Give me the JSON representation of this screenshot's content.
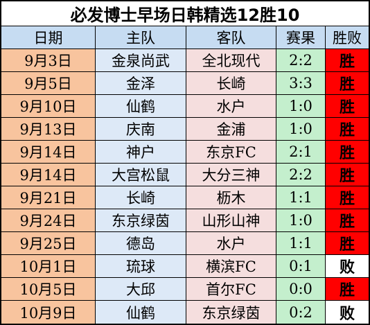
{
  "title": "必发博士早场日韩精选12胜10",
  "headers": [
    "日期",
    "主队",
    "客队",
    "赛果",
    "胜败"
  ],
  "colors": {
    "date_bg": "#f8c49e",
    "home_bg": "#dde9f7",
    "away_bg": "#f5dede",
    "score_bg": "#c4efcd",
    "header_bg": "#c6dcf2",
    "win_bg": "#ff0000",
    "loss_bg": "#ffffff"
  },
  "rows": [
    {
      "date": "9月3日",
      "home": "金泉尚武",
      "away": "全北现代",
      "score": "2:2",
      "result": "胜"
    },
    {
      "date": "9月5日",
      "home": "金泽",
      "away": "长崎",
      "score": "3:3",
      "result": "胜"
    },
    {
      "date": "9月10日",
      "home": "仙鹤",
      "away": "水户",
      "score": "1:0",
      "result": "胜"
    },
    {
      "date": "9月13日",
      "home": "庆南",
      "away": "金浦",
      "score": "1:0",
      "result": "胜"
    },
    {
      "date": "9月14日",
      "home": "神户",
      "away": "东京FC",
      "score": "2:1",
      "result": "胜"
    },
    {
      "date": "9月14日",
      "home": "大宫松鼠",
      "away": "大分三神",
      "score": "2:2",
      "result": "胜"
    },
    {
      "date": "9月21日",
      "home": "长崎",
      "away": "枥木",
      "score": "1:1",
      "result": "胜"
    },
    {
      "date": "9月24日",
      "home": "东京绿茵",
      "away": "山形山神",
      "score": "1:0",
      "result": "胜"
    },
    {
      "date": "9月25日",
      "home": "德岛",
      "away": "水户",
      "score": "1:1",
      "result": "胜"
    },
    {
      "date": "10月1日",
      "home": "琉球",
      "away": "横滨FC",
      "score": "0:1",
      "result": "败"
    },
    {
      "date": "10月5日",
      "home": "大邱",
      "away": "首尔FC",
      "score": "0:0",
      "result": "胜"
    },
    {
      "date": "10月9日",
      "home": "仙鹤",
      "away": "东京绿茵",
      "score": "0:2",
      "result": "败"
    }
  ]
}
